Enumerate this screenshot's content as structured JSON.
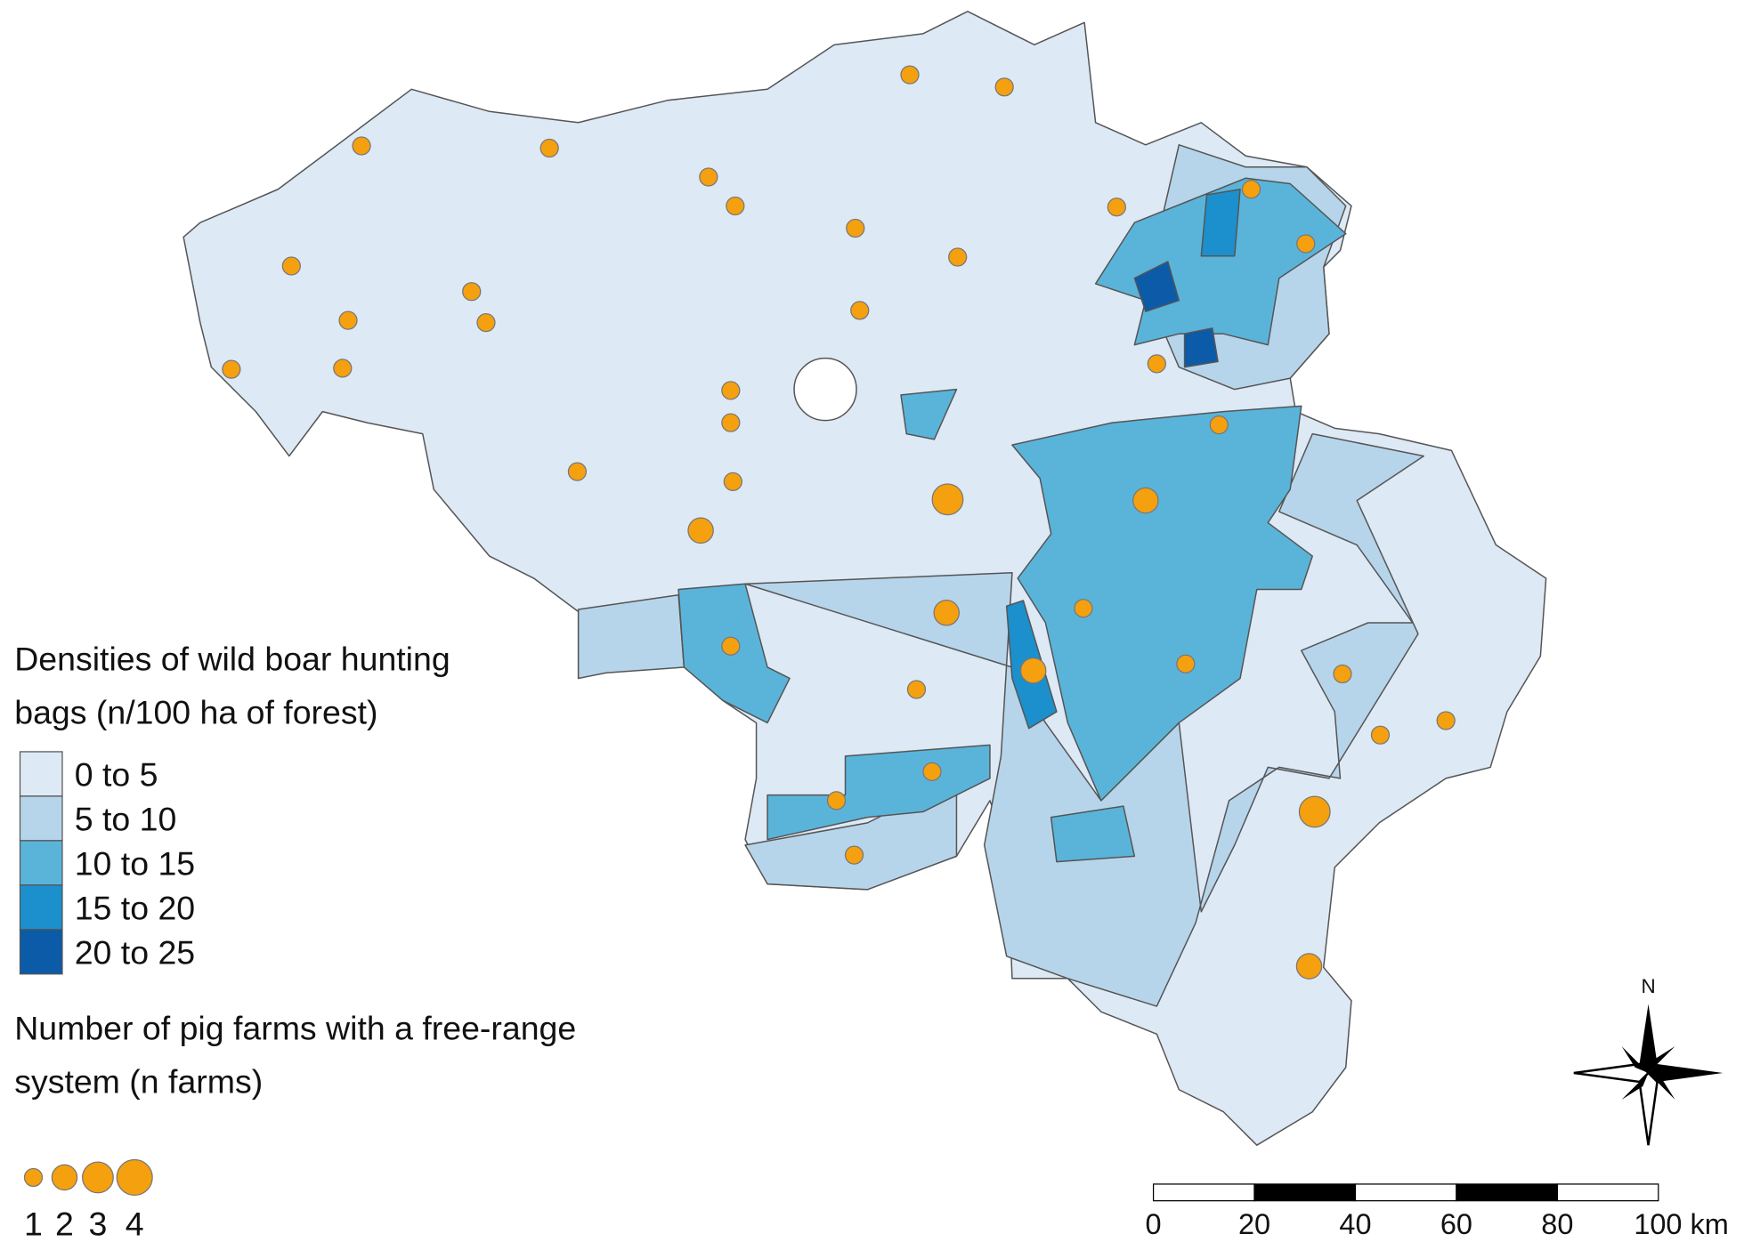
{
  "legend": {
    "density_title": [
      "Densities of wild boar hunting",
      "bags (n/100 ha of forest)"
    ],
    "classes": [
      {
        "label": "0 to 5",
        "color": "#dde9f5"
      },
      {
        "label": "5 to 10",
        "color": "#b7d5ea"
      },
      {
        "label": "10 to 15",
        "color": "#5ab4da"
      },
      {
        "label": "15 to 20",
        "color": "#1b90cc"
      },
      {
        "label": "20 to 25",
        "color": "#0b5ba8"
      }
    ],
    "farms_title": [
      "Number of pig farms with a free-range",
      "system (n farms)"
    ],
    "farm_sizes": [
      1,
      2,
      3,
      4
    ],
    "farm_color": "#f5a00f"
  },
  "farms": {
    "values": [
      1,
      1,
      1,
      1,
      1,
      1,
      1,
      1,
      1,
      1,
      1,
      1,
      1,
      1,
      1,
      1,
      1,
      1,
      1,
      1,
      1,
      1,
      1,
      1,
      3,
      2,
      2,
      2,
      1,
      1,
      2,
      1,
      1,
      1,
      1,
      1,
      1,
      1,
      3,
      1,
      2
    ]
  },
  "scale_bar": {
    "ticks": [
      0,
      20,
      40,
      60,
      80,
      {
        "value": 100,
        "label": "100 km"
      }
    ]
  },
  "north_label": "N"
}
